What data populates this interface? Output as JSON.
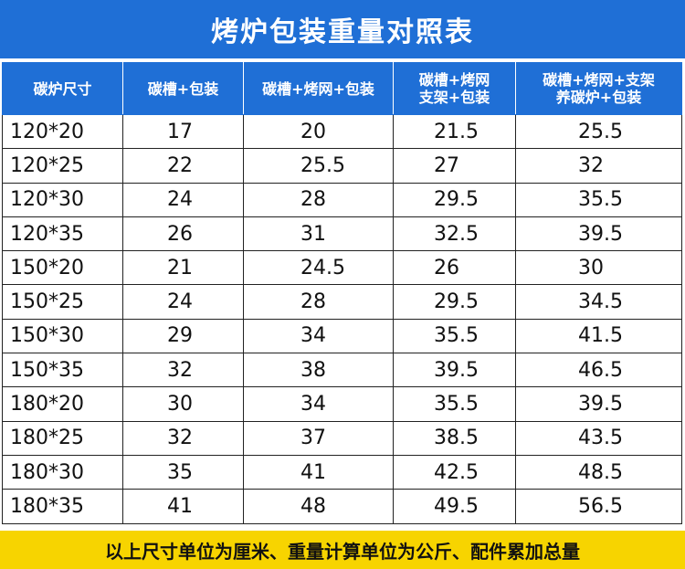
{
  "title": "烤炉包装重量对照表",
  "headers": [
    [
      "碳炉尺寸"
    ],
    [
      "碳槽+包装"
    ],
    [
      "碳槽+烤网+包装"
    ],
    [
      "碳槽+烤网",
      "支架+包装"
    ],
    [
      "碳槽+烤网+支架",
      "养碳炉+包装"
    ]
  ],
  "rows": [
    [
      "120*20",
      "17",
      "20",
      "21.5",
      "25.5"
    ],
    [
      "120*25",
      "22",
      "25.5",
      "27",
      "32"
    ],
    [
      "120*30",
      "24",
      "28",
      "29.5",
      "35.5"
    ],
    [
      "120*35",
      "26",
      "31",
      "32.5",
      "39.5"
    ],
    [
      "150*20",
      "21",
      "24.5",
      "26",
      "30"
    ],
    [
      "150*25",
      "24",
      "28",
      "29.5",
      "34.5"
    ],
    [
      "150*30",
      "29",
      "34",
      "35.5",
      "41.5"
    ],
    [
      "150*35",
      "32",
      "38",
      "39.5",
      "46.5"
    ],
    [
      "180*20",
      "30",
      "34",
      "35.5",
      "39.5"
    ],
    [
      "180*25",
      "32",
      "37",
      "38.5",
      "43.5"
    ],
    [
      "180*30",
      "35",
      "41",
      "42.5",
      "48.5"
    ],
    [
      "180*35",
      "41",
      "48",
      "49.5",
      "56.5"
    ]
  ],
  "footer": "以上尺寸单位为厘米、重量计算单位为公斤、配件累加总量",
  "colors": {
    "header_blue": "#1f6fd6",
    "footer_yellow": "#f7d400",
    "grid": "#222222"
  }
}
